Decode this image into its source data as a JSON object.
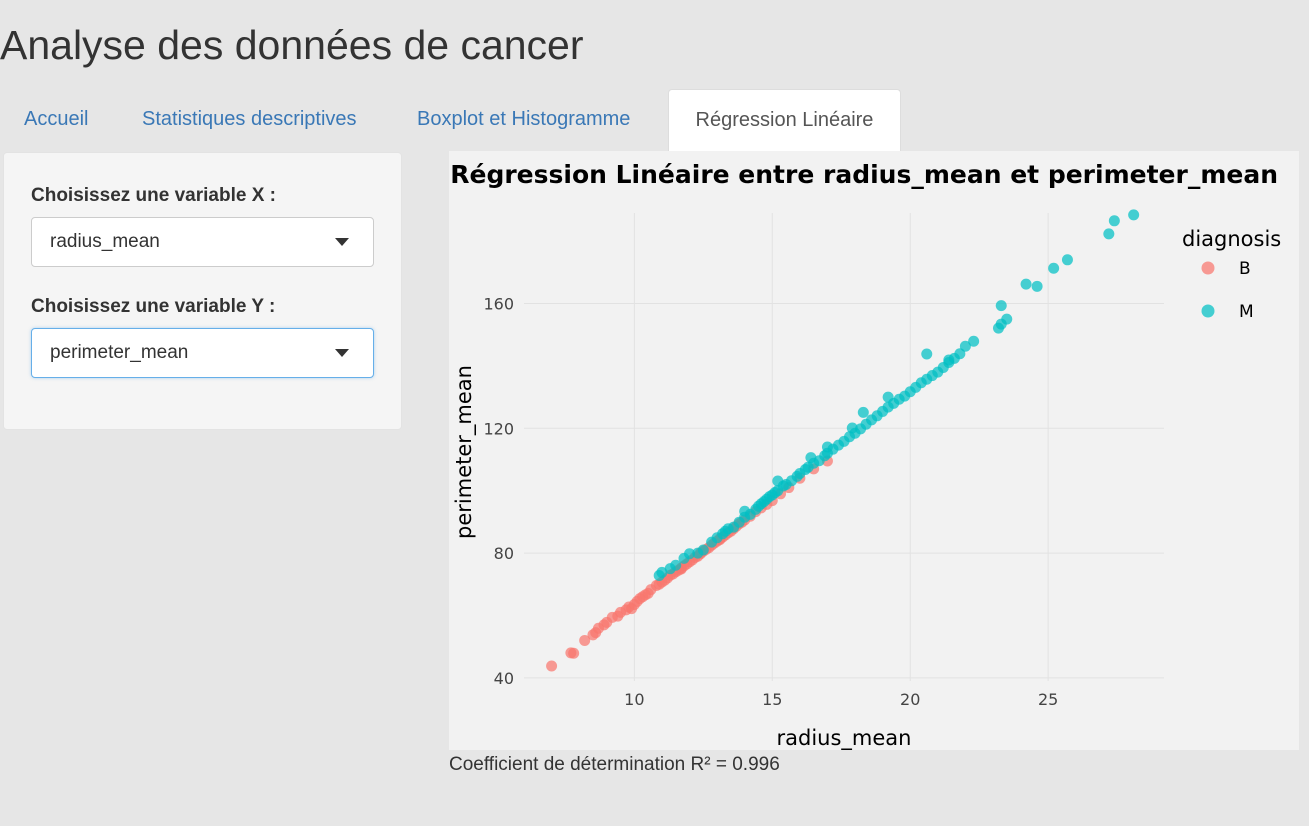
{
  "app": {
    "title": "Analyse des données de cancer"
  },
  "tabs": [
    {
      "label": "Accueil"
    },
    {
      "label": "Statistiques descriptives"
    },
    {
      "label": "Boxplot et Histogramme"
    },
    {
      "label": "Régression Linéaire",
      "active": true
    }
  ],
  "sidebar": {
    "x_label": "Choisissez une variable X :",
    "x_value": "radius_mean",
    "y_label": "Choisissez une variable Y :",
    "y_value": "perimeter_mean"
  },
  "icons": {
    "dropdown": "caret-down-icon"
  },
  "colors": {
    "benign": "#f8766d",
    "malignant": "#00bfc4",
    "tab_link": "#3a78b6",
    "focus": "#66afe9"
  },
  "chart_data": {
    "type": "scatter",
    "title": "Régression Linéaire entre radius_mean et perimeter_mean",
    "xlabel": "radius_mean",
    "ylabel": "perimeter_mean",
    "xlim": [
      6.0,
      29.2
    ],
    "ylim": [
      39,
      189
    ],
    "x_ticks": [
      10,
      15,
      20,
      25
    ],
    "y_ticks": [
      40,
      80,
      120,
      160
    ],
    "grid": true,
    "legend": {
      "title": "diagnosis",
      "position": "right"
    },
    "series": [
      {
        "name": "B",
        "color": "#f8766d",
        "points": [
          [
            7.0,
            43.8
          ],
          [
            7.7,
            48.0
          ],
          [
            7.8,
            47.9
          ],
          [
            8.2,
            52.0
          ],
          [
            8.6,
            54.5
          ],
          [
            8.7,
            55.9
          ],
          [
            8.9,
            57.0
          ],
          [
            9.0,
            57.8
          ],
          [
            9.2,
            59.4
          ],
          [
            9.4,
            59.8
          ],
          [
            9.5,
            61.0
          ],
          [
            9.7,
            61.8
          ],
          [
            9.8,
            62.7
          ],
          [
            10.0,
            63.5
          ],
          [
            10.1,
            64.5
          ],
          [
            10.2,
            65.4
          ],
          [
            10.3,
            66.0
          ],
          [
            10.5,
            67.1
          ],
          [
            10.6,
            68.3
          ],
          [
            10.8,
            69.6
          ],
          [
            10.9,
            70.0
          ],
          [
            11.0,
            70.7
          ],
          [
            11.1,
            71.3
          ],
          [
            11.2,
            72.0
          ],
          [
            11.3,
            72.9
          ],
          [
            11.4,
            73.3
          ],
          [
            11.5,
            74.0
          ],
          [
            11.6,
            74.5
          ],
          [
            11.7,
            75.2
          ],
          [
            11.8,
            75.9
          ],
          [
            11.9,
            76.5
          ],
          [
            12.0,
            77.2
          ],
          [
            12.1,
            77.8
          ],
          [
            12.2,
            78.6
          ],
          [
            12.3,
            79.0
          ],
          [
            12.4,
            79.8
          ],
          [
            12.5,
            80.6
          ],
          [
            12.6,
            81.2
          ],
          [
            12.7,
            81.7
          ],
          [
            12.8,
            82.5
          ],
          [
            12.9,
            83.2
          ],
          [
            13.0,
            83.8
          ],
          [
            13.1,
            84.3
          ],
          [
            13.2,
            85.1
          ],
          [
            13.3,
            85.8
          ],
          [
            13.4,
            86.5
          ],
          [
            13.5,
            87.0
          ],
          [
            13.6,
            87.8
          ],
          [
            13.7,
            88.6
          ],
          [
            13.8,
            89.4
          ],
          [
            13.9,
            89.9
          ],
          [
            14.0,
            90.6
          ],
          [
            14.2,
            91.8
          ],
          [
            14.4,
            93.3
          ],
          [
            14.6,
            94.5
          ],
          [
            14.8,
            95.6
          ],
          [
            15.0,
            96.8
          ],
          [
            15.3,
            99.0
          ],
          [
            15.6,
            101.0
          ],
          [
            16.0,
            104.0
          ],
          [
            16.5,
            107.0
          ],
          [
            17.0,
            109.5
          ],
          [
            10.4,
            66.6
          ],
          [
            11.7,
            74.9
          ],
          [
            12.4,
            80.1
          ],
          [
            13.1,
            84.6
          ],
          [
            9.9,
            62.2
          ],
          [
            8.5,
            53.8
          ]
        ]
      },
      {
        "name": "M",
        "color": "#00bfc4",
        "points": [
          [
            10.9,
            72.8
          ],
          [
            11.3,
            75.0
          ],
          [
            11.5,
            76.1
          ],
          [
            11.8,
            78.3
          ],
          [
            12.3,
            80.0
          ],
          [
            12.5,
            81.0
          ],
          [
            12.8,
            83.5
          ],
          [
            13.0,
            84.9
          ],
          [
            13.2,
            86.2
          ],
          [
            13.4,
            87.8
          ],
          [
            13.6,
            88.3
          ],
          [
            13.8,
            89.9
          ],
          [
            14.0,
            91.5
          ],
          [
            14.2,
            92.4
          ],
          [
            14.4,
            94.0
          ],
          [
            14.5,
            95.0
          ],
          [
            14.6,
            95.8
          ],
          [
            14.7,
            96.5
          ],
          [
            14.8,
            97.3
          ],
          [
            14.9,
            98.1
          ],
          [
            15.0,
            98.6
          ],
          [
            15.1,
            99.4
          ],
          [
            15.2,
            100.0
          ],
          [
            15.4,
            101.5
          ],
          [
            15.5,
            102.0
          ],
          [
            15.7,
            103.2
          ],
          [
            15.9,
            104.6
          ],
          [
            16.0,
            105.5
          ],
          [
            16.2,
            106.8
          ],
          [
            16.3,
            107.5
          ],
          [
            16.5,
            108.8
          ],
          [
            16.7,
            109.6
          ],
          [
            16.9,
            111.2
          ],
          [
            17.0,
            112.0
          ],
          [
            17.2,
            113.3
          ],
          [
            17.4,
            114.6
          ],
          [
            17.6,
            115.8
          ],
          [
            17.8,
            117.3
          ],
          [
            18.0,
            118.4
          ],
          [
            18.2,
            119.8
          ],
          [
            18.4,
            121.3
          ],
          [
            18.6,
            122.7
          ],
          [
            18.8,
            124.0
          ],
          [
            19.0,
            125.4
          ],
          [
            19.2,
            126.8
          ],
          [
            19.4,
            128.0
          ],
          [
            19.6,
            129.3
          ],
          [
            19.8,
            130.3
          ],
          [
            20.0,
            131.7
          ],
          [
            20.2,
            133.1
          ],
          [
            20.4,
            134.6
          ],
          [
            20.6,
            135.7
          ],
          [
            20.8,
            136.9
          ],
          [
            21.0,
            138.0
          ],
          [
            21.2,
            139.5
          ],
          [
            21.4,
            141.1
          ],
          [
            21.6,
            142.4
          ],
          [
            21.8,
            143.9
          ],
          [
            22.0,
            146.3
          ],
          [
            22.3,
            147.9
          ],
          [
            23.2,
            152.1
          ],
          [
            23.3,
            153.4
          ],
          [
            23.5,
            155.0
          ],
          [
            23.3,
            159.3
          ],
          [
            24.2,
            166.2
          ],
          [
            24.6,
            165.5
          ],
          [
            25.2,
            171.3
          ],
          [
            25.7,
            174.0
          ],
          [
            27.2,
            182.3
          ],
          [
            27.4,
            186.5
          ],
          [
            28.1,
            188.4
          ],
          [
            16.4,
            110.6
          ],
          [
            17.9,
            120.1
          ],
          [
            20.6,
            143.8
          ],
          [
            19.2,
            130.0
          ],
          [
            15.2,
            103.1
          ],
          [
            14.0,
            93.4
          ],
          [
            12.0,
            79.8
          ],
          [
            18.3,
            125.1
          ],
          [
            21.4,
            141.9
          ],
          [
            17.0,
            114.0
          ],
          [
            13.3,
            87.0
          ],
          [
            11.0,
            73.8
          ]
        ]
      }
    ]
  },
  "caption": "Coefficient de détermination R² = 0.996"
}
